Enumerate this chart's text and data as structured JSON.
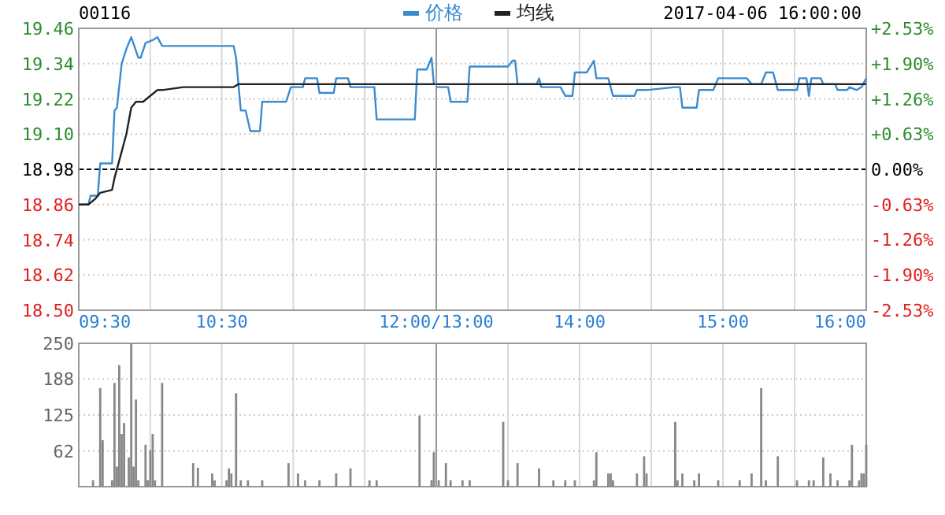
{
  "chart_data": [
    {
      "type": "line",
      "title": "00116",
      "grid": true,
      "xlim": [
        9.5,
        12
      ],
      "xticks": [
        {
          "value": 9.5,
          "label": "09:30"
        },
        {
          "value": 10,
          "label": null
        },
        {
          "value": 10.5,
          "label": "10:30"
        },
        {
          "value": 11,
          "label": null
        },
        {
          "value": 11.5,
          "label": null
        },
        {
          "value": 12,
          "label": "12:00/13:00"
        }
      ],
      "ylim": [
        18.5,
        19.46
      ],
      "yticks": [
        19.46,
        19.34,
        19.22,
        {
          "value": 19.1,
          "label": "19.10"
        },
        18.98,
        18.86,
        18.74,
        18.62,
        {
          "value": 18.5,
          "label": "18.50"
        }
      ],
      "ref_lines": [
        {
          "axis": "y",
          "value": 18.98,
          "color": "#000000",
          "line_style": "dashed"
        }
      ],
      "series": [
        {
          "color": "#3b8bd0",
          "x": [
            9.5,
            9.567,
            9.583,
            9.633,
            9.65,
            9.733,
            9.75,
            9.767,
            9.8,
            9.833,
            9.867,
            9.917,
            9.933,
            9.967,
            10.017,
            10.05,
            10.083,
            10.583,
            10.6,
            10.633,
            10.667,
            10.7,
            10.767,
            10.783,
            10.95,
            10.983,
            11.067,
            11.083,
            11.167,
            11.183,
            11.283,
            11.3,
            11.383,
            11.4,
            11.567,
            11.583,
            11.85,
            11.867,
            11.933,
            11.967,
            11.983,
            12
          ],
          "values": [
            18.86,
            18.86,
            18.89,
            18.89,
            19.0,
            19.0,
            19.18,
            19.19,
            19.34,
            19.39,
            19.43,
            19.36,
            19.36,
            19.41,
            19.42,
            19.43,
            19.4,
            19.4,
            19.36,
            19.18,
            19.18,
            19.11,
            19.11,
            19.21,
            19.21,
            19.26,
            19.26,
            19.29,
            19.29,
            19.24,
            19.24,
            19.29,
            19.29,
            19.26,
            19.26,
            19.15,
            19.15,
            19.32,
            19.32,
            19.36,
            19.27,
            19.27
          ]
        },
        {
          "color": "#222222",
          "x": [
            9.5,
            9.567,
            9.617,
            9.65,
            9.733,
            9.75,
            9.8,
            9.833,
            9.867,
            9.9,
            9.95,
            10,
            10.05,
            10.083,
            10.233,
            10.417,
            10.583,
            10.617,
            12
          ],
          "values": [
            18.86,
            18.86,
            18.88,
            18.9,
            18.91,
            18.95,
            19.04,
            19.1,
            19.19,
            19.21,
            19.21,
            19.23,
            19.25,
            19.25,
            19.26,
            19.26,
            19.26,
            19.27,
            19.27
          ]
        }
      ]
    },
    {
      "type": "line",
      "subtitle": "2017-04-06 16:00:00",
      "legend": "top",
      "grid": true,
      "tick_labels": "x",
      "xlim": [
        13,
        16
      ],
      "xticks": [
        {
          "value": 13,
          "label": null
        },
        {
          "value": 13.5,
          "label": null
        },
        {
          "value": 14,
          "label": "14:00"
        },
        {
          "value": 14.5,
          "label": null
        },
        {
          "value": 15,
          "label": "15:00"
        },
        {
          "value": 15.5,
          "label": null
        },
        {
          "value": 16,
          "label": "16:00"
        }
      ],
      "ylim": [
        18.5,
        19.46
      ],
      "yticks": [
        19.46,
        19.34,
        19.22,
        {
          "value": 19.1,
          "label": null
        },
        18.98,
        18.86,
        18.74,
        18.62,
        {
          "value": 18.5,
          "label": null
        }
      ],
      "y2lim": [
        -2.53,
        2.53
      ],
      "y2ticks": [
        {
          "value": 2.53,
          "label": "+2.53%"
        },
        {
          "value": 1.9,
          "label": "+1.90%"
        },
        {
          "value": 1.26,
          "label": "+1.26%"
        },
        {
          "value": 0.63,
          "label": "+0.63%"
        },
        {
          "value": 0,
          "label": "0.00%"
        },
        {
          "value": -0.63,
          "label": "-0.63%"
        },
        {
          "value": -1.26,
          "label": "-1.26%"
        },
        {
          "value": -1.9,
          "label": "-1.90%"
        },
        {
          "value": -2.53,
          "label": "-2.53%"
        }
      ],
      "ref_lines": [
        {
          "axis": "y",
          "value": 18.98,
          "color": "#000000",
          "line_style": "dashed"
        }
      ],
      "series": [
        {
          "name": "价格",
          "color": "#3b8bd0",
          "x": [
            13,
            13.083,
            13.1,
            13.217,
            13.233,
            13.5,
            13.533,
            13.55,
            13.567,
            13.7,
            13.717,
            13.733,
            13.867,
            13.9,
            13.95,
            13.967,
            14.05,
            14.1,
            14.117,
            14.2,
            14.233,
            14.383,
            14.4,
            14.467,
            14.667,
            14.7,
            14.717,
            14.817,
            14.833,
            14.933,
            14.967,
            15.167,
            15.2,
            15.267,
            15.3,
            15.35,
            15.383,
            15.517,
            15.533,
            15.583,
            15.6,
            15.617,
            15.683,
            15.7,
            15.783,
            15.8,
            15.867,
            15.883,
            15.933,
            15.967,
            16
          ],
          "values": [
            19.26,
            19.26,
            19.21,
            19.21,
            19.33,
            19.33,
            19.35,
            19.35,
            19.27,
            19.27,
            19.29,
            19.26,
            19.26,
            19.23,
            19.23,
            19.31,
            19.31,
            19.35,
            19.29,
            19.29,
            19.23,
            19.23,
            19.25,
            19.25,
            19.26,
            19.26,
            19.19,
            19.19,
            19.25,
            19.25,
            19.29,
            19.29,
            19.27,
            19.27,
            19.31,
            19.31,
            19.25,
            19.25,
            19.29,
            19.29,
            19.23,
            19.29,
            19.29,
            19.27,
            19.27,
            19.25,
            19.25,
            19.26,
            19.25,
            19.26,
            19.29
          ]
        },
        {
          "name": "均线",
          "color": "#222222",
          "x": [
            13,
            16
          ],
          "values": [
            19.27,
            19.27
          ]
        }
      ]
    },
    {
      "type": "bar",
      "grid": true,
      "tick_labels": "y",
      "color": "#888888",
      "xlim": [
        9.5,
        12
      ],
      "xticks": [
        {
          "value": 9.5,
          "label": null
        },
        {
          "value": 10,
          "label": null
        },
        {
          "value": 10.5,
          "label": null
        },
        {
          "value": 11,
          "label": null
        },
        {
          "value": 11.5,
          "label": null
        },
        {
          "value": 12,
          "label": null
        }
      ],
      "ylim": [
        0,
        250
      ],
      "yticks": [
        {
          "value": 0,
          "label": null
        },
        62,
        125,
        188,
        250
      ],
      "x": [
        9.6,
        9.65,
        9.667,
        9.733,
        9.75,
        9.767,
        9.783,
        9.8,
        9.817,
        9.85,
        9.867,
        9.883,
        9.9,
        9.917,
        9.967,
        9.983,
        10,
        10.017,
        10.033,
        10.083,
        10.3,
        10.333,
        10.433,
        10.45,
        10.533,
        10.55,
        10.567,
        10.6,
        10.633,
        10.683,
        10.783,
        10.967,
        11.033,
        11.083,
        11.183,
        11.3,
        11.4,
        11.533,
        11.583,
        11.883,
        11.967,
        11.983
      ],
      "values": [
        11,
        172,
        81,
        11,
        181,
        35,
        212,
        92,
        111,
        51,
        250,
        35,
        152,
        11,
        73,
        11,
        64,
        92,
        11,
        181,
        41,
        33,
        23,
        11,
        11,
        32,
        23,
        163,
        11,
        11,
        11,
        41,
        23,
        11,
        11,
        23,
        32,
        11,
        11,
        124,
        11,
        60
      ]
    },
    {
      "type": "bar",
      "grid": true,
      "tick_labels": false,
      "color": "#888888",
      "xlim": [
        13,
        16
      ],
      "xticks": [
        {
          "value": 13,
          "label": null
        },
        {
          "value": 13.5,
          "label": null
        },
        {
          "value": 14,
          "label": null
        },
        {
          "value": 14.5,
          "label": null
        },
        {
          "value": 15,
          "label": null
        },
        {
          "value": 15.5,
          "label": null
        },
        {
          "value": 16,
          "label": null
        }
      ],
      "ylim": [
        0,
        250
      ],
      "yticks": [
        {
          "value": 0,
          "label": null
        },
        62,
        125,
        188,
        250
      ],
      "x": [
        13.017,
        13.067,
        13.1,
        13.183,
        13.233,
        13.467,
        13.5,
        13.567,
        13.717,
        13.817,
        13.9,
        13.967,
        14.1,
        14.117,
        14.2,
        14.217,
        14.233,
        14.4,
        14.45,
        14.467,
        14.667,
        14.683,
        14.717,
        14.8,
        14.833,
        14.967,
        15.117,
        15.2,
        15.267,
        15.3,
        15.383,
        15.517,
        15.6,
        15.633,
        15.7,
        15.75,
        15.8,
        15.883,
        15.9,
        15.95,
        15.967,
        15.983,
        16
      ],
      "values": [
        11,
        41,
        11,
        11,
        11,
        113,
        11,
        41,
        32,
        11,
        11,
        11,
        11,
        60,
        23,
        23,
        11,
        23,
        53,
        23,
        113,
        11,
        23,
        11,
        23,
        11,
        11,
        23,
        172,
        11,
        53,
        11,
        11,
        11,
        51,
        23,
        11,
        11,
        73,
        11,
        23,
        23,
        73
      ]
    }
  ]
}
